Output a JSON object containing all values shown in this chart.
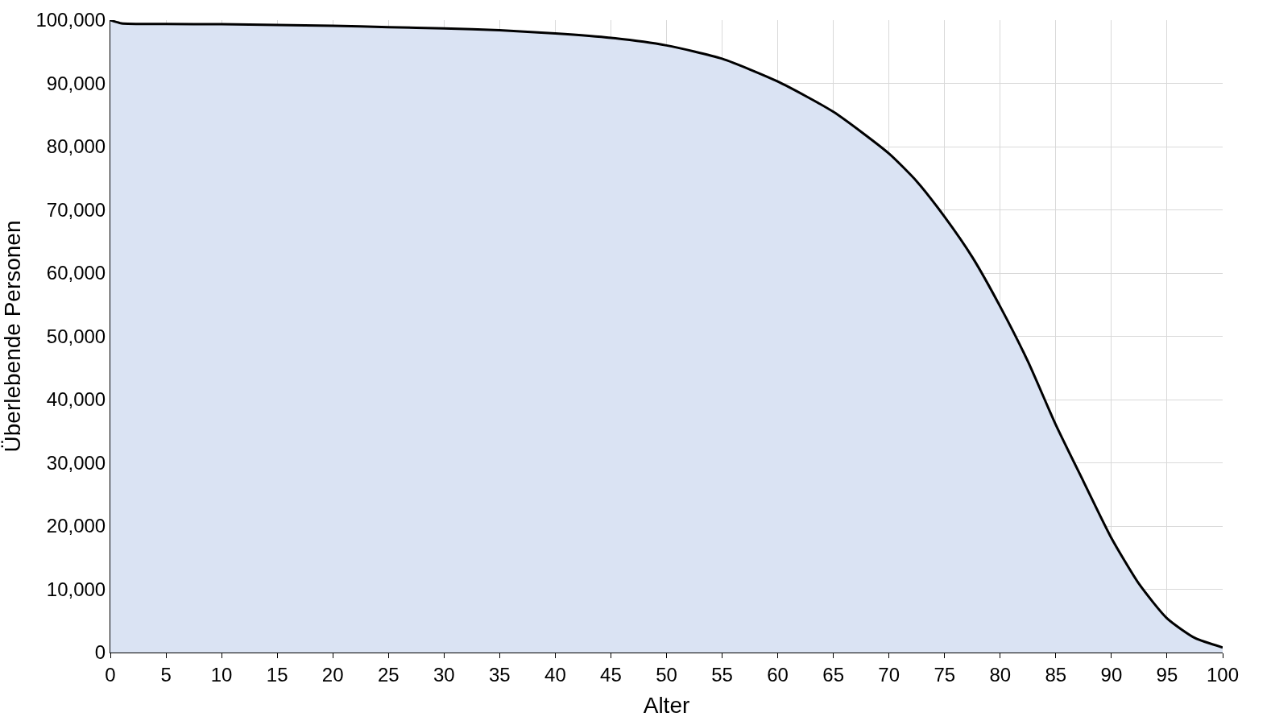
{
  "chart_data": {
    "type": "area",
    "xlabel": "Alter",
    "ylabel": "Überlebende Personen",
    "x": [
      0,
      1,
      5,
      10,
      15,
      20,
      25,
      30,
      35,
      40,
      45,
      50,
      55,
      60,
      65,
      70,
      72.5,
      75,
      77.5,
      80,
      82.5,
      85,
      87.5,
      90,
      92.5,
      95,
      97.5,
      100
    ],
    "series": [
      {
        "color": "#dae3f3",
        "values": [
          100000,
          99500,
          99400,
          99350,
          99250,
          99100,
          98900,
          98700,
          98400,
          97900,
          97200,
          96000,
          93900,
          90300,
          85500,
          78900,
          74500,
          68900,
          62500,
          54700,
          46000,
          36000,
          27000,
          18100,
          10800,
          5400,
          2300,
          800
        ]
      }
    ],
    "xlim": [
      0,
      100
    ],
    "xticks": [
      0,
      5,
      10,
      15,
      20,
      25,
      30,
      35,
      40,
      45,
      50,
      55,
      60,
      65,
      70,
      75,
      80,
      85,
      90,
      95,
      100
    ],
    "ylim": [
      0,
      100000
    ],
    "yticks": [
      {
        "value": 0,
        "label": "0"
      },
      {
        "value": 10000,
        "label": "10,000"
      },
      {
        "value": 20000,
        "label": "20,000"
      },
      {
        "value": 30000,
        "label": "30,000"
      },
      {
        "value": 40000,
        "label": "40,000"
      },
      {
        "value": 50000,
        "label": "50,000"
      },
      {
        "value": 60000,
        "label": "60,000"
      },
      {
        "value": 70000,
        "label": "70,000"
      },
      {
        "value": 80000,
        "label": "80,000"
      },
      {
        "value": 90000,
        "label": "90,000"
      },
      {
        "value": 100000,
        "label": "100,000"
      }
    ],
    "grid": true
  }
}
